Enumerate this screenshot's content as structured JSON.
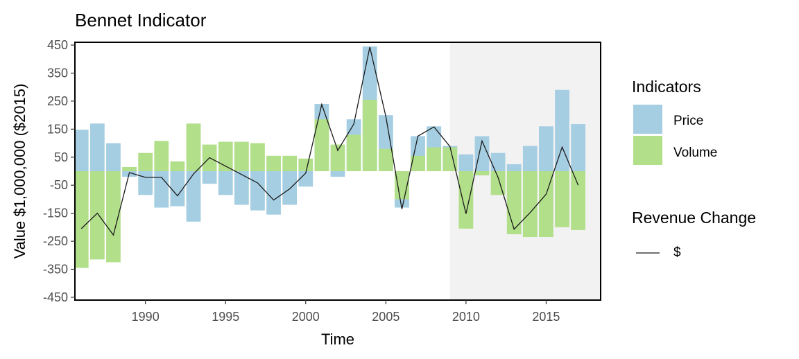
{
  "chart_data": {
    "type": "bar",
    "title": "Bennet Indicator",
    "xlabel": "Time",
    "ylabel": "Value $1,000,000 ($2015)",
    "xlim": [
      1985.6,
      2018.4
    ],
    "ylim": [
      -460,
      460
    ],
    "y_ticks": [
      450,
      350,
      250,
      150,
      50,
      -50,
      -150,
      -250,
      -350,
      -450
    ],
    "x_ticks": [
      1990,
      1995,
      2000,
      2005,
      2010,
      2015
    ],
    "shaded_region": [
      2009,
      2018.4
    ],
    "grid": false,
    "legend": {
      "position": "right",
      "fill_title": "Indicators",
      "line_title": "Revenue Change"
    },
    "x": [
      1986,
      1987,
      1988,
      1989,
      1990,
      1991,
      1992,
      1993,
      1994,
      1995,
      1996,
      1997,
      1998,
      1999,
      2000,
      2001,
      2002,
      2003,
      2004,
      2005,
      2006,
      2007,
      2008,
      2009,
      2010,
      2011,
      2012,
      2013,
      2014,
      2015,
      2016,
      2017
    ],
    "series": [
      {
        "name": "Price",
        "color": "#a6cee3",
        "values": [
          148,
          170,
          100,
          -20,
          -85,
          -130,
          -125,
          -180,
          -45,
          -85,
          -120,
          -140,
          -155,
          -120,
          -55,
          240,
          -20,
          185,
          445,
          200,
          -130,
          125,
          160,
          90,
          60,
          125,
          65,
          25,
          90,
          160,
          290,
          168
        ]
      },
      {
        "name": "Volume",
        "color": "#b2df8a",
        "values": [
          -345,
          -315,
          -325,
          15,
          65,
          108,
          35,
          170,
          95,
          105,
          105,
          100,
          55,
          55,
          45,
          185,
          95,
          130,
          255,
          80,
          -100,
          55,
          85,
          85,
          -205,
          -15,
          -85,
          -225,
          -235,
          -235,
          -200,
          -210
        ]
      },
      {
        "name": "$",
        "type": "line",
        "color": "#1a1a1a",
        "values": [
          -205,
          -150,
          -228,
          -5,
          -22,
          -22,
          -88,
          -10,
          48,
          18,
          -12,
          -42,
          -103,
          -63,
          -7,
          238,
          74,
          168,
          443,
          195,
          -135,
          125,
          158,
          88,
          -152,
          108,
          -22,
          -207,
          -148,
          -82,
          86,
          -50
        ]
      }
    ]
  }
}
